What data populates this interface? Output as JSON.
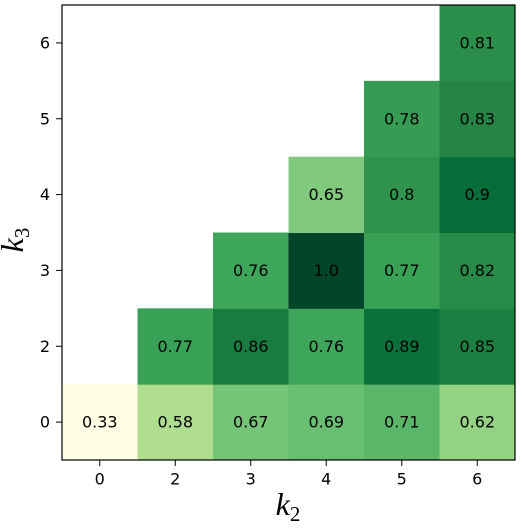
{
  "chart_data": {
    "type": "heatmap",
    "x_categories": [
      "0",
      "2",
      "3",
      "4",
      "5",
      "6"
    ],
    "y_categories": [
      "0",
      "2",
      "3",
      "4",
      "5",
      "6"
    ],
    "x_label": {
      "base": "k",
      "sub": "2"
    },
    "y_label": {
      "base": "k",
      "sub": "3"
    },
    "colormap": [
      "#ffffe5",
      "#f7fcb9",
      "#d9f0a3",
      "#addd8e",
      "#78c679",
      "#41ab5d",
      "#238443",
      "#006837",
      "#004529"
    ],
    "values": [
      [
        0.33,
        0.58,
        0.67,
        0.69,
        0.71,
        0.62
      ],
      [
        null,
        0.77,
        0.86,
        0.76,
        0.89,
        0.85
      ],
      [
        null,
        null,
        0.76,
        1.0,
        0.77,
        0.82
      ],
      [
        null,
        null,
        null,
        0.65,
        0.8,
        0.9
      ],
      [
        null,
        null,
        null,
        null,
        0.78,
        0.83
      ],
      [
        null,
        null,
        null,
        null,
        null,
        0.81
      ]
    ],
    "value_labels": [
      [
        "0.33",
        "0.58",
        "0.67",
        "0.69",
        "0.71",
        "0.62"
      ],
      [
        null,
        "0.77",
        "0.86",
        "0.76",
        "0.89",
        "0.85"
      ],
      [
        null,
        null,
        "0.76",
        "1.0",
        "0.77",
        "0.82"
      ],
      [
        null,
        null,
        null,
        "0.65",
        "0.8",
        "0.9"
      ],
      [
        null,
        null,
        null,
        null,
        "0.78",
        "0.83"
      ],
      [
        null,
        null,
        null,
        null,
        null,
        "0.81"
      ]
    ]
  }
}
